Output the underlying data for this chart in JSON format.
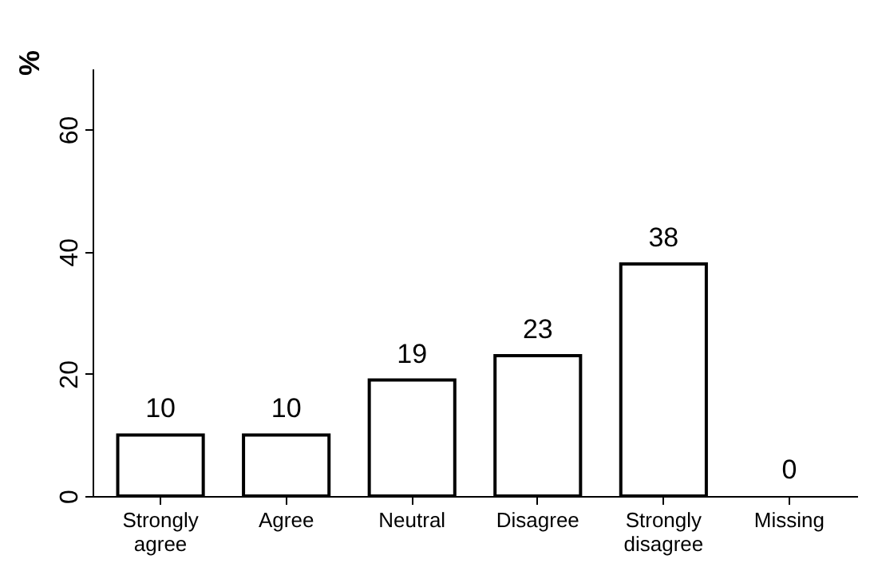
{
  "chart_data": {
    "type": "bar",
    "ylabel": "%",
    "categories": [
      "Strongly agree",
      "Agree",
      "Neutral",
      "Disagree",
      "Strongly disagree",
      "Missing"
    ],
    "values": [
      10,
      10,
      19,
      23,
      38,
      0
    ],
    "color": "#ffffff",
    "ylim": [
      0,
      70
    ],
    "yticks": [
      0,
      20,
      40,
      60
    ],
    "grid": false,
    "data_labels": true
  }
}
